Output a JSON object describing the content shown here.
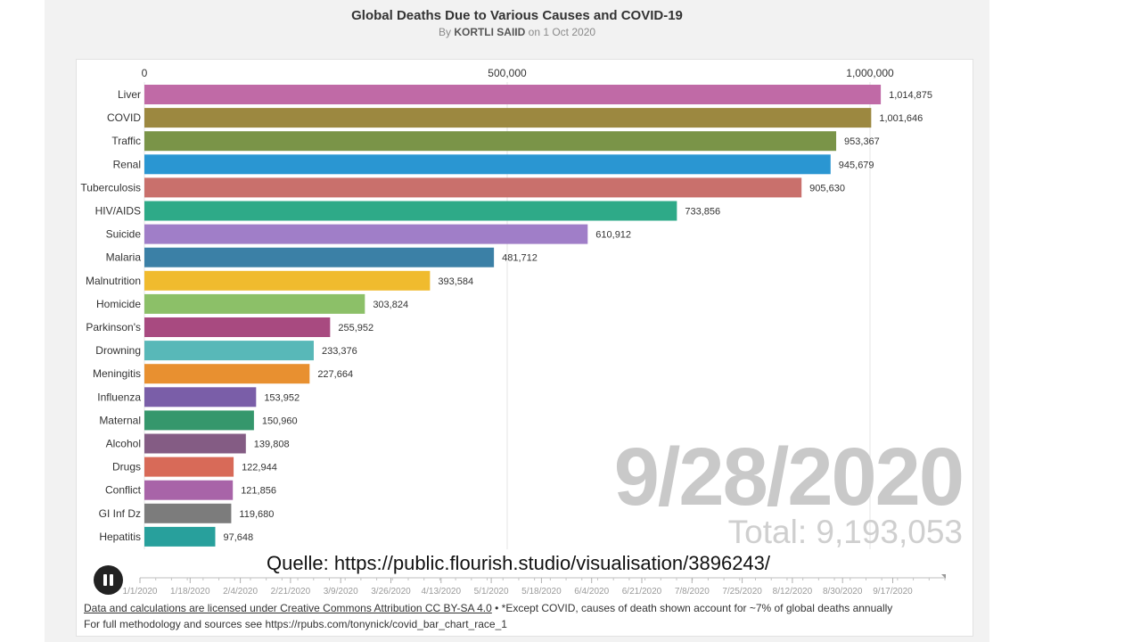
{
  "header": {
    "title": "Global Deaths Due to Various Causes and COVID-19",
    "subtitle_prefix": "By",
    "author": "KORTLI SAIID",
    "subtitle_suffix": "on 1 Oct 2020"
  },
  "overlay": {
    "current_date": "9/28/2020",
    "total": "Total: 9,193,053",
    "source": "Quelle: https://public.flourish.studio/visualisation/3896243/"
  },
  "timeline": {
    "ticks": [
      "1/1/2020",
      "1/18/2020",
      "2/4/2020",
      "2/21/2020",
      "3/9/2020",
      "3/26/2020",
      "4/13/2020",
      "5/1/2020",
      "5/18/2020",
      "6/4/2020",
      "6/21/2020",
      "7/8/2020",
      "7/25/2020",
      "8/12/2020",
      "8/30/2020",
      "9/17/2020"
    ]
  },
  "footer": {
    "license_link": "Data and calculations are licensed under Creative Commons Attribution CC BY-SA 4.0",
    "license_note": " • *Except COVID, causes of death shown account for ~7% of global deaths annually",
    "methodology": "For full methodology and sources see https://rpubs.com/tonynick/covid_bar_chart_race_1"
  },
  "chart_data": {
    "type": "bar",
    "orientation": "horizontal",
    "xlim": [
      0,
      1070000
    ],
    "x_ticks": [
      0,
      500000,
      1000000
    ],
    "x_tick_labels": [
      "0",
      "500,000",
      "1,000,000"
    ],
    "grid": true,
    "categories": [
      "Liver",
      "COVID",
      "Traffic",
      "Renal",
      "Tuberculosis",
      "HIV/AIDS",
      "Suicide",
      "Malaria",
      "Malnutrition",
      "Homicide",
      "Parkinson's",
      "Drowning",
      "Meningitis",
      "Influenza",
      "Maternal",
      "Alcohol",
      "Drugs",
      "Conflict",
      "GI Inf Dz",
      "Hepatitis"
    ],
    "values": [
      1014875,
      1001646,
      953367,
      945679,
      905630,
      733856,
      610912,
      481712,
      393584,
      303824,
      255952,
      233376,
      227664,
      153952,
      150960,
      139808,
      122944,
      121856,
      119680,
      97648
    ],
    "value_labels": [
      "1,014,875",
      "1,001,646",
      "953,367",
      "945,679",
      "905,630",
      "733,856",
      "610,912",
      "481,712",
      "393,584",
      "303,824",
      "255,952",
      "233,376",
      "227,664",
      "153,952",
      "150,960",
      "139,808",
      "122,944",
      "121,856",
      "119,680",
      "97,648"
    ],
    "colors": [
      "#c06aa6",
      "#9c8840",
      "#7a9448",
      "#2a96d2",
      "#c9706c",
      "#2eaa88",
      "#a07ec8",
      "#3b80a6",
      "#f0bb2e",
      "#8cc068",
      "#a84a80",
      "#58b8b8",
      "#e89030",
      "#7a5ea8",
      "#35976c",
      "#845c84",
      "#d86a58",
      "#a864a8",
      "#7c7c7c",
      "#28a09c"
    ]
  }
}
